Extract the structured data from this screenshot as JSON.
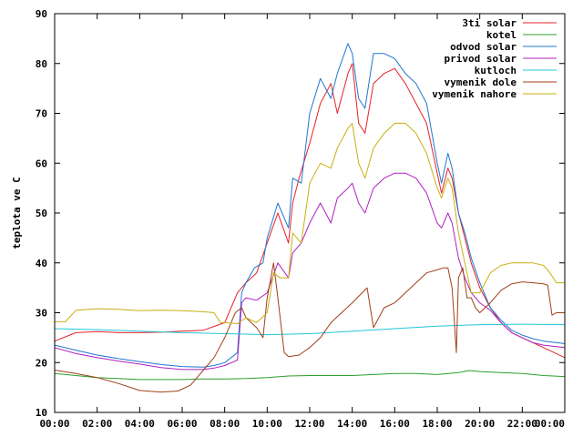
{
  "chart_data": {
    "type": "line",
    "title": "",
    "xlabel": "",
    "ylabel": "teplota ve C",
    "xlim": [
      0,
      24
    ],
    "ylim": [
      10,
      90
    ],
    "x_ticks": [
      "00:00",
      "02:00",
      "04:00",
      "06:00",
      "08:00",
      "10:00",
      "12:00",
      "14:00",
      "16:00",
      "18:00",
      "20:00",
      "22:00",
      "00:00"
    ],
    "y_ticks": [
      10,
      20,
      30,
      40,
      50,
      60,
      70,
      80,
      90
    ],
    "legend_position": "top-right",
    "grid": false,
    "series": [
      {
        "name": "3ti solar",
        "color": "#e8202a",
        "points": [
          [
            0,
            24.3
          ],
          [
            1,
            26.0
          ],
          [
            2,
            26.2
          ],
          [
            3,
            26.0
          ],
          [
            4,
            26.0
          ],
          [
            5,
            26.1
          ],
          [
            6,
            26.3
          ],
          [
            7,
            26.5
          ],
          [
            8,
            28.0
          ],
          [
            8.6,
            34
          ],
          [
            9,
            36
          ],
          [
            9.5,
            38
          ],
          [
            10,
            44
          ],
          [
            10.5,
            50
          ],
          [
            11,
            44
          ],
          [
            11.2,
            52
          ],
          [
            11.5,
            57
          ],
          [
            12,
            64
          ],
          [
            12.5,
            72
          ],
          [
            13,
            76
          ],
          [
            13.3,
            70
          ],
          [
            13.8,
            78
          ],
          [
            14,
            80
          ],
          [
            14.3,
            68
          ],
          [
            14.6,
            66
          ],
          [
            15,
            76
          ],
          [
            15.5,
            78
          ],
          [
            16,
            79
          ],
          [
            16.5,
            76
          ],
          [
            17,
            72
          ],
          [
            17.5,
            68
          ],
          [
            18,
            58
          ],
          [
            18.2,
            54
          ],
          [
            18.5,
            59
          ],
          [
            18.7,
            57
          ],
          [
            19,
            50
          ],
          [
            19.3,
            45
          ],
          [
            19.6,
            40
          ],
          [
            20,
            35
          ],
          [
            20.5,
            31
          ],
          [
            21,
            28
          ],
          [
            21.5,
            26
          ],
          [
            22,
            25
          ],
          [
            22.5,
            24
          ],
          [
            23,
            23
          ],
          [
            23.5,
            22
          ],
          [
            24,
            21
          ]
        ]
      },
      {
        "name": "kotel",
        "color": "#2ca02c",
        "points": [
          [
            0,
            17.8
          ],
          [
            1,
            17.4
          ],
          [
            2,
            17.0
          ],
          [
            3,
            16.8
          ],
          [
            4,
            16.6
          ],
          [
            5,
            16.6
          ],
          [
            6,
            16.6
          ],
          [
            7,
            16.7
          ],
          [
            8,
            16.7
          ],
          [
            9,
            16.8
          ],
          [
            10,
            17.0
          ],
          [
            11,
            17.3
          ],
          [
            12,
            17.4
          ],
          [
            13,
            17.4
          ],
          [
            14,
            17.4
          ],
          [
            15,
            17.6
          ],
          [
            16,
            17.8
          ],
          [
            17,
            17.8
          ],
          [
            18,
            17.6
          ],
          [
            19,
            18.0
          ],
          [
            19.5,
            18.4
          ],
          [
            20,
            18.2
          ],
          [
            21,
            18.0
          ],
          [
            22,
            17.8
          ],
          [
            23,
            17.4
          ],
          [
            24,
            17.2
          ]
        ]
      },
      {
        "name": "odvod solar",
        "color": "#1f77d0",
        "points": [
          [
            0,
            23.5
          ],
          [
            1,
            22.5
          ],
          [
            2,
            21.5
          ],
          [
            3,
            20.8
          ],
          [
            4,
            20.2
          ],
          [
            5,
            19.6
          ],
          [
            6,
            19.2
          ],
          [
            7,
            19.1
          ],
          [
            7.5,
            19.4
          ],
          [
            8,
            20
          ],
          [
            8.6,
            22
          ],
          [
            8.8,
            34
          ],
          [
            9,
            36
          ],
          [
            9.4,
            39
          ],
          [
            9.8,
            40
          ],
          [
            10,
            45
          ],
          [
            10.5,
            52
          ],
          [
            11,
            47
          ],
          [
            11.2,
            57
          ],
          [
            11.6,
            56
          ],
          [
            12,
            70
          ],
          [
            12.5,
            77
          ],
          [
            13,
            73
          ],
          [
            13.3,
            78
          ],
          [
            13.8,
            84
          ],
          [
            14,
            82
          ],
          [
            14.3,
            73
          ],
          [
            14.6,
            71
          ],
          [
            15,
            82
          ],
          [
            15.5,
            82
          ],
          [
            16,
            81
          ],
          [
            16.5,
            78
          ],
          [
            17,
            76
          ],
          [
            17.5,
            72
          ],
          [
            18,
            60
          ],
          [
            18.2,
            56
          ],
          [
            18.5,
            62
          ],
          [
            18.7,
            59
          ],
          [
            19,
            50
          ],
          [
            19.3,
            46
          ],
          [
            19.6,
            41
          ],
          [
            20,
            36
          ],
          [
            20.5,
            31
          ],
          [
            21,
            28.5
          ],
          [
            21.5,
            26.5
          ],
          [
            22,
            25.5
          ],
          [
            22.5,
            24.8
          ],
          [
            23,
            24.3
          ],
          [
            24,
            23.8
          ]
        ]
      },
      {
        "name": "privod solar",
        "color": "#b020c0",
        "points": [
          [
            0,
            23.0
          ],
          [
            1,
            21.8
          ],
          [
            2,
            21.0
          ],
          [
            3,
            20.3
          ],
          [
            4,
            19.7
          ],
          [
            5,
            19.0
          ],
          [
            6,
            18.6
          ],
          [
            7,
            18.6
          ],
          [
            7.5,
            18.9
          ],
          [
            8,
            19.4
          ],
          [
            8.6,
            20.5
          ],
          [
            8.8,
            32
          ],
          [
            9,
            33
          ],
          [
            9.5,
            32.5
          ],
          [
            10,
            34
          ],
          [
            10.5,
            40
          ],
          [
            11,
            37
          ],
          [
            11.2,
            42
          ],
          [
            11.6,
            44
          ],
          [
            12,
            48
          ],
          [
            12.5,
            52
          ],
          [
            13,
            48
          ],
          [
            13.3,
            53
          ],
          [
            13.8,
            55
          ],
          [
            14,
            56
          ],
          [
            14.3,
            52
          ],
          [
            14.6,
            50
          ],
          [
            15,
            55
          ],
          [
            15.5,
            57
          ],
          [
            16,
            58
          ],
          [
            16.5,
            58
          ],
          [
            17,
            57
          ],
          [
            17.5,
            54
          ],
          [
            18,
            48
          ],
          [
            18.2,
            47
          ],
          [
            18.5,
            50
          ],
          [
            18.7,
            48
          ],
          [
            19,
            41
          ],
          [
            19.3,
            37
          ],
          [
            19.6,
            34
          ],
          [
            20,
            32
          ],
          [
            20.5,
            30.5
          ],
          [
            21,
            28
          ],
          [
            21.5,
            26
          ],
          [
            22,
            25
          ],
          [
            22.5,
            24
          ],
          [
            23,
            23.5
          ],
          [
            24,
            23
          ]
        ]
      },
      {
        "name": "kutloch",
        "color": "#20c8d8",
        "points": [
          [
            0,
            26.8
          ],
          [
            2,
            26.6
          ],
          [
            4,
            26.3
          ],
          [
            6,
            26.0
          ],
          [
            8,
            25.8
          ],
          [
            10,
            25.6
          ],
          [
            12,
            25.8
          ],
          [
            14,
            26.3
          ],
          [
            16,
            26.8
          ],
          [
            18,
            27.3
          ],
          [
            20,
            27.6
          ],
          [
            22,
            27.7
          ],
          [
            24,
            27.6
          ]
        ]
      },
      {
        "name": "vymenik dole",
        "color": "#a0401a",
        "points": [
          [
            0,
            18.5
          ],
          [
            1,
            17.8
          ],
          [
            2,
            17.0
          ],
          [
            3,
            15.8
          ],
          [
            4,
            14.4
          ],
          [
            5,
            14.1
          ],
          [
            5.8,
            14.3
          ],
          [
            6.4,
            15.5
          ],
          [
            7,
            18.5
          ],
          [
            7.5,
            21
          ],
          [
            8,
            25
          ],
          [
            8.5,
            30
          ],
          [
            8.8,
            31
          ],
          [
            9,
            29
          ],
          [
            9.5,
            27
          ],
          [
            9.8,
            25
          ],
          [
            10,
            33
          ],
          [
            10.3,
            40
          ],
          [
            10.5,
            33
          ],
          [
            10.8,
            22
          ],
          [
            11,
            21.2
          ],
          [
            11.5,
            21.5
          ],
          [
            12,
            23
          ],
          [
            12.5,
            25
          ],
          [
            13,
            28
          ],
          [
            14,
            32
          ],
          [
            14.7,
            35
          ],
          [
            15,
            27
          ],
          [
            15.5,
            31
          ],
          [
            16,
            32
          ],
          [
            16.5,
            34
          ],
          [
            17,
            36
          ],
          [
            17.5,
            38
          ],
          [
            18,
            38.6
          ],
          [
            18.3,
            39
          ],
          [
            18.5,
            39
          ],
          [
            18.7,
            35
          ],
          [
            18.9,
            22
          ],
          [
            19,
            37
          ],
          [
            19.2,
            39
          ],
          [
            19.4,
            33
          ],
          [
            19.6,
            33
          ],
          [
            19.8,
            31
          ],
          [
            20,
            30
          ],
          [
            20.5,
            32
          ],
          [
            21,
            34.5
          ],
          [
            21.5,
            35.8
          ],
          [
            22,
            36.2
          ],
          [
            22.5,
            36
          ],
          [
            23,
            35.8
          ],
          [
            23.2,
            35.5
          ],
          [
            23.4,
            29.5
          ],
          [
            23.6,
            30
          ],
          [
            24,
            30
          ]
        ]
      },
      {
        "name": "vymenik nahore",
        "color": "#c8b010",
        "points": [
          [
            0,
            28.2
          ],
          [
            0.5,
            28.2
          ],
          [
            1,
            30.5
          ],
          [
            2,
            30.8
          ],
          [
            3,
            30.7
          ],
          [
            4,
            30.4
          ],
          [
            5,
            30.5
          ],
          [
            6,
            30.4
          ],
          [
            7,
            30.2
          ],
          [
            7.5,
            30.0
          ],
          [
            7.8,
            28
          ],
          [
            8,
            28
          ],
          [
            8.6,
            27.8
          ],
          [
            9,
            29
          ],
          [
            9.5,
            28
          ],
          [
            10,
            30
          ],
          [
            10.3,
            38
          ],
          [
            10.6,
            37
          ],
          [
            11,
            37
          ],
          [
            11.2,
            46
          ],
          [
            11.6,
            44
          ],
          [
            12,
            56
          ],
          [
            12.5,
            60
          ],
          [
            13,
            59
          ],
          [
            13.3,
            63
          ],
          [
            13.8,
            67
          ],
          [
            14,
            68
          ],
          [
            14.3,
            60
          ],
          [
            14.6,
            57
          ],
          [
            15,
            63
          ],
          [
            15.5,
            66
          ],
          [
            16,
            68
          ],
          [
            16.5,
            68
          ],
          [
            17,
            66
          ],
          [
            17.5,
            62
          ],
          [
            18,
            55
          ],
          [
            18.2,
            53
          ],
          [
            18.5,
            57
          ],
          [
            18.7,
            55
          ],
          [
            19,
            46
          ],
          [
            19.3,
            40
          ],
          [
            19.6,
            34
          ],
          [
            20,
            34
          ],
          [
            20.5,
            38
          ],
          [
            21,
            39.5
          ],
          [
            21.5,
            40
          ],
          [
            22,
            40
          ],
          [
            22.5,
            40
          ],
          [
            23,
            39.5
          ],
          [
            23.3,
            38
          ],
          [
            23.6,
            36
          ],
          [
            24,
            36
          ]
        ]
      }
    ]
  }
}
